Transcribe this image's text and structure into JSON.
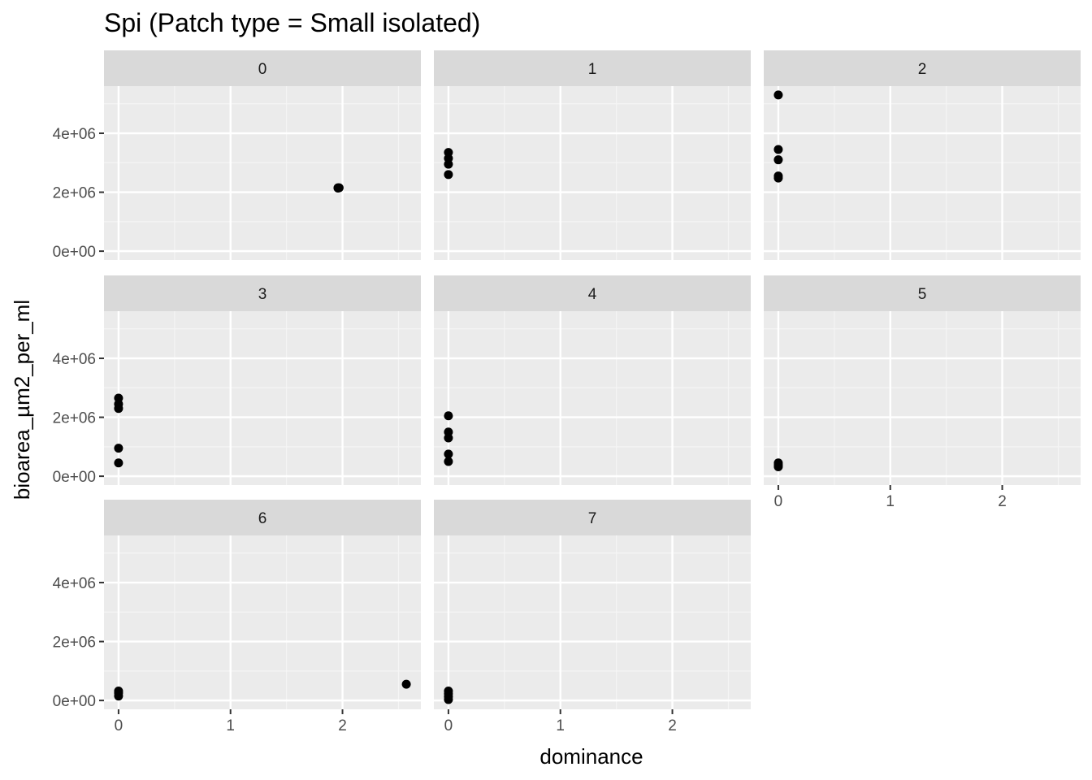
{
  "chart_data": {
    "type": "scatter",
    "title": "Spi (Patch type = Small isolated)",
    "xlabel": "dominance",
    "ylabel": "bioarea_µm2_per_ml",
    "xlim": [
      -0.13,
      2.7
    ],
    "ylim": [
      -300000,
      5600000
    ],
    "x_ticks": [
      0,
      1,
      2
    ],
    "x_tick_labels": [
      "0",
      "1",
      "2"
    ],
    "y_ticks": [
      0,
      2000000,
      4000000
    ],
    "y_tick_labels": [
      "0e+00",
      "2e+06",
      "4e+06"
    ],
    "grid": true,
    "point_color": "#000000",
    "panel_background": "#ebebeb",
    "strip_background": "#d9d9d9",
    "panels": [
      {
        "label": "0",
        "points": [
          {
            "x": 1.96,
            "y": 2150000
          },
          {
            "x": 1.96,
            "y": 2140000
          },
          {
            "x": 1.97,
            "y": 2150000
          }
        ]
      },
      {
        "label": "1",
        "points": [
          {
            "x": 0,
            "y": 3350000
          },
          {
            "x": 0,
            "y": 3150000
          },
          {
            "x": 0,
            "y": 2950000
          },
          {
            "x": 0,
            "y": 2600000
          }
        ]
      },
      {
        "label": "2",
        "points": [
          {
            "x": 0,
            "y": 5300000
          },
          {
            "x": 0,
            "y": 3450000
          },
          {
            "x": 0,
            "y": 3100000
          },
          {
            "x": 0,
            "y": 2550000
          },
          {
            "x": 0,
            "y": 2480000
          }
        ]
      },
      {
        "label": "3",
        "points": [
          {
            "x": 0,
            "y": 2650000
          },
          {
            "x": 0,
            "y": 2450000
          },
          {
            "x": 0,
            "y": 2300000
          },
          {
            "x": 0,
            "y": 950000
          },
          {
            "x": 0,
            "y": 450000
          }
        ]
      },
      {
        "label": "4",
        "points": [
          {
            "x": 0,
            "y": 2050000
          },
          {
            "x": 0,
            "y": 1500000
          },
          {
            "x": 0,
            "y": 1300000
          },
          {
            "x": 0,
            "y": 750000
          },
          {
            "x": 0,
            "y": 500000
          }
        ]
      },
      {
        "label": "5",
        "points": [
          {
            "x": 0,
            "y": 450000
          },
          {
            "x": 0,
            "y": 380000
          },
          {
            "x": 0,
            "y": 320000
          }
        ]
      },
      {
        "label": "6",
        "points": [
          {
            "x": 0,
            "y": 320000
          },
          {
            "x": 0,
            "y": 250000
          },
          {
            "x": 0,
            "y": 150000
          },
          {
            "x": 2.57,
            "y": 550000
          }
        ]
      },
      {
        "label": "7",
        "points": [
          {
            "x": 0,
            "y": 320000
          },
          {
            "x": 0,
            "y": 230000
          },
          {
            "x": 0,
            "y": 130000
          },
          {
            "x": 0,
            "y": 30000
          }
        ]
      }
    ]
  }
}
